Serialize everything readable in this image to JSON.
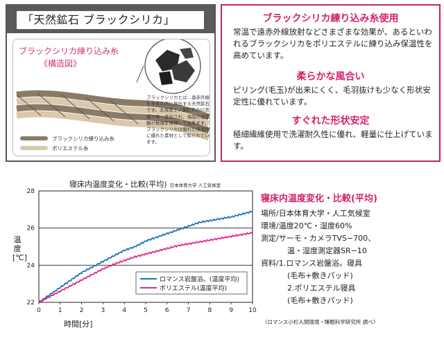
{
  "diagram": {
    "title": "「天然鉱石 ブラックシリカ」",
    "caption_line1": "ブラックシリカ練り込み糸",
    "caption_line2": "《構造図》",
    "note": "ブラックシリカとは…遠赤外線を半永久的に放出する天然鉱石です。北海道上ノ国町天の川流域で唯一産出され、海底の珪藻類が数億年堆積して出来ます。ブラックシリカは優れた保温性に優れた素材として知られています。",
    "legend": [
      "ブラックシリカ練り込み糸",
      "ポリエステル糸"
    ]
  },
  "features": [
    {
      "title": "ブラックシリカ練り込み糸使用",
      "text": "常温で遠赤外線放射などさまざまな効果が、あるといわれるブラックシリカをポリエステルに練り込み保温性を高めています。"
    },
    {
      "title": "柔らかな風合い",
      "text": "ピリング(毛玉)が出来にくく、毛羽抜けも少なく形状安定性に優れています。"
    },
    {
      "title": "すぐれた形状安定",
      "text": "極細繊維使用で洗濯耐久性に優れ、軽量に仕上げています。"
    }
  ],
  "chart_data": {
    "type": "line",
    "title": "寝床内温度変化・比較(平均)",
    "title_source": "日本体育大学 人工気候室",
    "xlabel": "時間[分]",
    "ylabel": "温度[℃]",
    "xlim": [
      0,
      10
    ],
    "ylim": [
      22,
      28
    ],
    "x_ticks": [
      0,
      1,
      2,
      3,
      4,
      5,
      6,
      7,
      8,
      9,
      10
    ],
    "y_ticks": [
      22,
      24,
      26,
      28
    ],
    "grid": "horizontal",
    "legend_position": "bottom-right",
    "series": [
      {
        "name": "ロマンス岩盤浴。(温度平均)",
        "color": "#1f6fb5",
        "x": [
          0,
          0.5,
          1,
          1.5,
          2,
          2.5,
          3,
          3.5,
          4,
          4.5,
          5,
          5.5,
          6,
          6.5,
          7,
          7.5,
          8,
          8.5,
          9,
          9.5,
          10
        ],
        "y": [
          22.0,
          22.4,
          22.8,
          23.2,
          23.6,
          23.9,
          24.2,
          24.5,
          24.8,
          25.0,
          25.3,
          25.5,
          25.7,
          25.9,
          26.1,
          26.3,
          26.4,
          26.5,
          26.6,
          26.75,
          26.9
        ]
      },
      {
        "name": "ポリエステル(温度平均)",
        "color": "#e0268a",
        "x": [
          0,
          0.5,
          1,
          1.5,
          2,
          2.5,
          3,
          3.5,
          4,
          4.5,
          5,
          5.5,
          6,
          6.5,
          7,
          7.5,
          8,
          8.5,
          9,
          9.5,
          10
        ],
        "y": [
          22.0,
          22.3,
          22.6,
          22.9,
          23.2,
          23.5,
          23.8,
          24.05,
          24.25,
          24.45,
          24.6,
          24.75,
          24.9,
          25.05,
          25.15,
          25.25,
          25.35,
          25.45,
          25.55,
          25.65,
          25.75
        ]
      }
    ]
  },
  "info": {
    "title": "寝床内温度変化・比較(平均)",
    "lines": [
      "場所/日本体育大学・人工気候室",
      "環境/温度20℃・湿度60%",
      "測定/サーモ・カメラTVS−700、",
      "温・湿度測定器SR−10",
      "資料/1.ロマンス岩盤浴。寝具",
      "(毛布+敷きパッド)",
      "2.ポリエステル寝具",
      "(毛布+敷きパッド)"
    ],
    "source": "〈ロマンス小杉人間環境・睡眠科学研究所 調べ〉"
  }
}
